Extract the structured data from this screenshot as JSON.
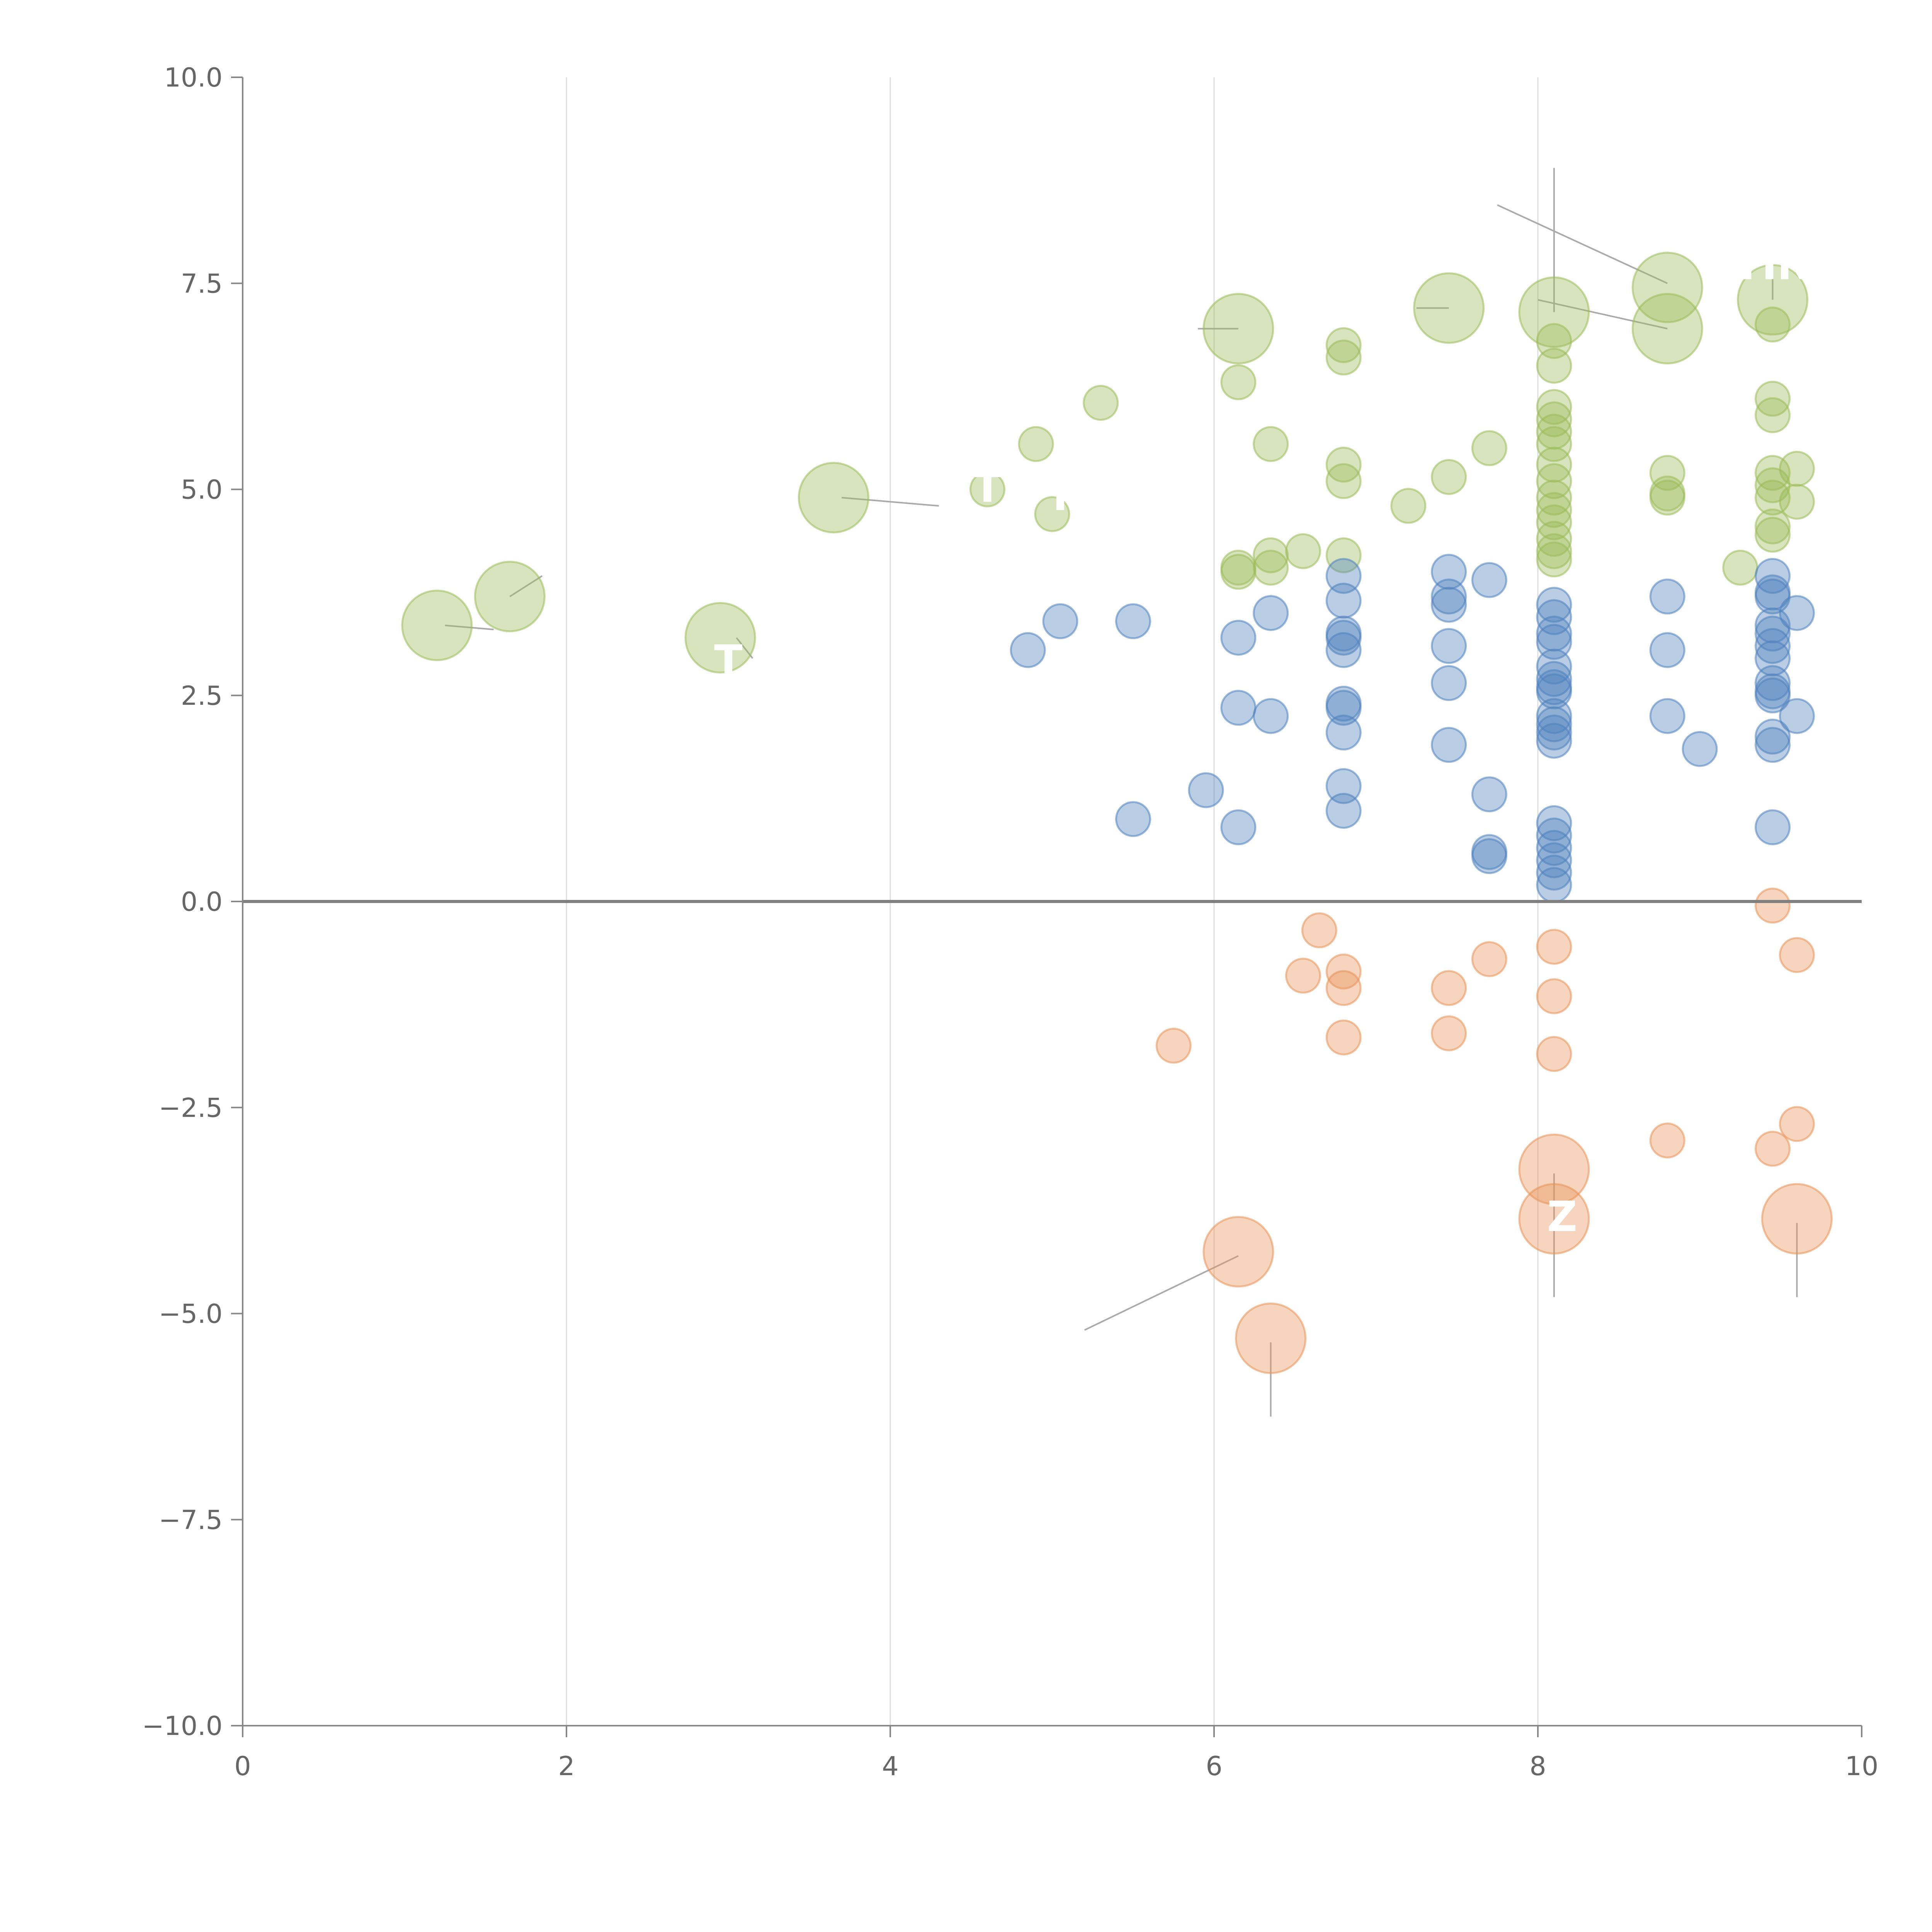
{
  "chart_data": {
    "type": "scatter",
    "title": "",
    "xlabel": "",
    "ylabel": "",
    "xlim": [
      0,
      10
    ],
    "ylim": [
      -10,
      10
    ],
    "x_ticks": [
      "0",
      "2",
      "4",
      "6",
      "8",
      "10"
    ],
    "y_ticks": [
      "10.0",
      "7.5",
      "5.0",
      "2.5",
      "0.0",
      "−2.5",
      "−5.0",
      "−7.5",
      "−10.0"
    ],
    "x_tick_values": [
      0,
      2,
      4,
      6,
      8,
      10
    ],
    "y_tick_values": [
      10,
      7.5,
      5,
      2.5,
      0,
      -2.5,
      -5,
      -7.5,
      -10
    ],
    "grid": "vertical",
    "zero_line": true,
    "colors": {
      "green": "#9bbb59",
      "blue": "#4f81bd",
      "orange": "#e8935a",
      "axis": "#888888",
      "grid": "#dddddd",
      "zero": "#808080"
    },
    "series": [
      {
        "name": "green",
        "color": "#9bbb59",
        "points": [
          [
            8.8,
            7.45,
            2
          ],
          [
            9.45,
            7.3,
            2
          ],
          [
            8.1,
            7.15,
            2
          ],
          [
            7.45,
            7.2,
            2
          ],
          [
            6.15,
            6.95,
            2
          ],
          [
            8.8,
            6.95,
            2
          ],
          [
            1.2,
            3.35,
            2
          ],
          [
            1.65,
            3.7,
            2
          ],
          [
            2.95,
            3.2,
            2
          ],
          [
            3.65,
            4.9,
            2
          ],
          [
            8.1,
            6.8,
            1
          ],
          [
            8.1,
            6.5,
            1
          ],
          [
            8.1,
            6.0,
            1
          ],
          [
            8.1,
            5.85,
            1
          ],
          [
            8.1,
            5.7,
            1
          ],
          [
            8.1,
            5.55,
            1
          ],
          [
            8.1,
            5.3,
            1
          ],
          [
            8.1,
            5.1,
            1
          ],
          [
            8.1,
            4.9,
            1
          ],
          [
            8.1,
            4.75,
            1
          ],
          [
            8.1,
            4.6,
            1
          ],
          [
            8.1,
            4.4,
            1
          ],
          [
            8.1,
            4.25,
            1
          ],
          [
            8.1,
            4.15,
            1
          ],
          [
            9.45,
            7.0,
            1
          ],
          [
            9.45,
            6.1,
            1
          ],
          [
            9.45,
            5.9,
            1
          ],
          [
            9.45,
            5.2,
            1
          ],
          [
            9.45,
            5.05,
            1
          ],
          [
            9.45,
            4.9,
            1
          ],
          [
            9.45,
            4.55,
            1
          ],
          [
            9.45,
            4.45,
            1
          ],
          [
            9.6,
            5.25,
            1
          ],
          [
            9.6,
            4.85,
            1
          ],
          [
            9.25,
            4.05,
            1
          ],
          [
            8.8,
            5.2,
            1
          ],
          [
            8.8,
            4.95,
            1
          ],
          [
            8.8,
            4.9,
            1
          ],
          [
            7.7,
            5.5,
            1
          ],
          [
            7.45,
            5.15,
            1
          ],
          [
            7.2,
            4.8,
            1
          ],
          [
            6.8,
            6.75,
            1
          ],
          [
            6.8,
            6.6,
            1
          ],
          [
            6.8,
            5.3,
            1
          ],
          [
            6.8,
            5.1,
            1
          ],
          [
            6.8,
            4.2,
            1
          ],
          [
            6.15,
            6.3,
            1
          ],
          [
            6.15,
            4.05,
            1
          ],
          [
            6.15,
            4.0,
            1
          ],
          [
            6.35,
            5.55,
            1
          ],
          [
            6.35,
            4.2,
            1
          ],
          [
            6.35,
            4.05,
            1
          ],
          [
            6.55,
            4.25,
            1
          ],
          [
            5.3,
            6.05,
            1
          ],
          [
            4.9,
            5.55,
            1
          ],
          [
            5.0,
            4.7,
            1
          ],
          [
            4.6,
            5.0,
            1
          ]
        ]
      },
      {
        "name": "blue",
        "color": "#4f81bd",
        "points": [
          [
            8.1,
            3.6,
            1
          ],
          [
            8.1,
            3.45,
            1
          ],
          [
            8.1,
            3.25,
            1
          ],
          [
            8.1,
            3.15,
            1
          ],
          [
            8.1,
            2.85,
            1
          ],
          [
            8.1,
            2.7,
            1
          ],
          [
            8.1,
            2.6,
            1
          ],
          [
            8.1,
            2.55,
            1
          ],
          [
            8.1,
            2.25,
            1
          ],
          [
            8.1,
            2.15,
            1
          ],
          [
            8.1,
            2.05,
            1
          ],
          [
            8.1,
            1.95,
            1
          ],
          [
            8.1,
            0.95,
            1
          ],
          [
            8.1,
            0.8,
            1
          ],
          [
            8.1,
            0.65,
            1
          ],
          [
            8.1,
            0.5,
            1
          ],
          [
            8.1,
            0.35,
            1
          ],
          [
            8.1,
            0.2,
            1
          ],
          [
            9.45,
            3.95,
            1
          ],
          [
            9.45,
            3.75,
            1
          ],
          [
            9.45,
            3.7,
            1
          ],
          [
            9.45,
            3.35,
            1
          ],
          [
            9.45,
            3.25,
            1
          ],
          [
            9.45,
            3.1,
            1
          ],
          [
            9.45,
            2.95,
            1
          ],
          [
            9.45,
            2.65,
            1
          ],
          [
            9.45,
            2.55,
            1
          ],
          [
            9.45,
            2.5,
            1
          ],
          [
            9.45,
            2.0,
            1
          ],
          [
            9.45,
            1.9,
            1
          ],
          [
            9.45,
            0.9,
            1
          ],
          [
            9.6,
            3.5,
            1
          ],
          [
            9.6,
            2.25,
            1
          ],
          [
            9.0,
            1.85,
            1
          ],
          [
            8.8,
            3.7,
            1
          ],
          [
            8.8,
            3.05,
            1
          ],
          [
            8.8,
            2.25,
            1
          ],
          [
            7.7,
            3.9,
            1
          ],
          [
            7.7,
            1.3,
            1
          ],
          [
            7.7,
            0.6,
            1
          ],
          [
            7.7,
            0.55,
            1
          ],
          [
            7.45,
            4.0,
            1
          ],
          [
            7.45,
            3.7,
            1
          ],
          [
            7.45,
            3.6,
            1
          ],
          [
            7.45,
            3.1,
            1
          ],
          [
            7.45,
            2.65,
            1
          ],
          [
            7.45,
            1.9,
            1
          ],
          [
            6.8,
            3.95,
            1
          ],
          [
            6.8,
            3.65,
            1
          ],
          [
            6.8,
            3.25,
            1
          ],
          [
            6.8,
            3.2,
            1
          ],
          [
            6.8,
            3.05,
            1
          ],
          [
            6.8,
            2.4,
            1
          ],
          [
            6.8,
            2.35,
            1
          ],
          [
            6.8,
            2.05,
            1
          ],
          [
            6.8,
            1.4,
            1
          ],
          [
            6.8,
            1.1,
            1
          ],
          [
            6.35,
            3.5,
            1
          ],
          [
            6.35,
            2.25,
            1
          ],
          [
            6.15,
            3.2,
            1
          ],
          [
            6.15,
            2.35,
            1
          ],
          [
            6.15,
            0.9,
            1
          ],
          [
            5.95,
            1.35,
            1
          ],
          [
            5.5,
            3.4,
            1
          ],
          [
            5.5,
            1.0,
            1
          ],
          [
            5.05,
            3.4,
            1
          ],
          [
            4.85,
            3.05,
            1
          ]
        ]
      },
      {
        "name": "orange",
        "color": "#e8935a",
        "points": [
          [
            9.45,
            -0.05,
            1
          ],
          [
            9.6,
            -0.65,
            1
          ],
          [
            9.6,
            -2.7,
            1
          ],
          [
            9.45,
            -3.0,
            1
          ],
          [
            8.8,
            -2.9,
            1
          ],
          [
            8.1,
            -0.55,
            1
          ],
          [
            8.1,
            -1.15,
            1
          ],
          [
            8.1,
            -1.85,
            1
          ],
          [
            7.7,
            -0.7,
            1
          ],
          [
            7.45,
            -1.05,
            1
          ],
          [
            7.45,
            -1.6,
            1
          ],
          [
            6.8,
            -0.85,
            1
          ],
          [
            6.8,
            -1.05,
            1
          ],
          [
            6.8,
            -1.65,
            1
          ],
          [
            6.65,
            -0.35,
            1
          ],
          [
            6.55,
            -0.9,
            1
          ],
          [
            5.75,
            -1.75,
            1
          ],
          [
            8.1,
            -3.25,
            2
          ],
          [
            8.1,
            -3.85,
            2
          ],
          [
            9.6,
            -3.85,
            2
          ],
          [
            6.15,
            -4.25,
            2
          ],
          [
            6.35,
            -5.3,
            2
          ]
        ]
      }
    ],
    "leader_lines": [
      [
        8.8,
        7.5,
        7.75,
        8.45
      ],
      [
        9.45,
        7.3,
        9.45,
        7.55
      ],
      [
        8.1,
        7.15,
        8.1,
        8.9
      ],
      [
        7.45,
        7.2,
        7.25,
        7.2
      ],
      [
        8.8,
        6.95,
        8.0,
        7.3
      ],
      [
        6.15,
        6.95,
        5.9,
        6.95
      ],
      [
        1.25,
        3.35,
        1.55,
        3.3
      ],
      [
        1.65,
        3.7,
        1.85,
        3.95
      ],
      [
        3.05,
        3.2,
        3.15,
        2.95
      ],
      [
        3.7,
        4.9,
        4.3,
        4.8
      ],
      [
        8.1,
        -3.3,
        8.1,
        -4.8
      ],
      [
        9.6,
        -3.9,
        9.6,
        -4.8
      ],
      [
        6.15,
        -4.3,
        5.2,
        -5.2
      ],
      [
        6.35,
        -5.35,
        6.35,
        -6.25
      ]
    ],
    "labels": [
      {
        "text": "Z",
        "x": 8.15,
        "y": -4.0
      },
      {
        "text": "TIN",
        "x": 9.45,
        "y": 7.55
      },
      {
        "text": "T",
        "x": 3.0,
        "y": 2.75
      },
      {
        "text": "T",
        "x": 4.6,
        "y": 4.85
      },
      {
        "text": "T",
        "x": 5.05,
        "y": 4.75
      }
    ]
  }
}
